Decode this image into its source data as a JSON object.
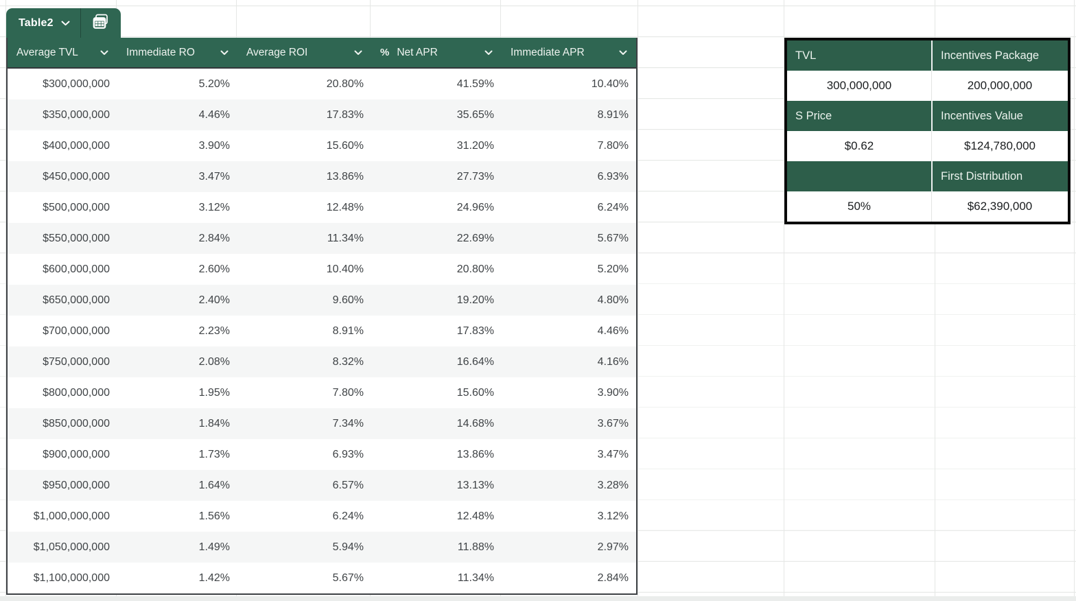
{
  "table_tab": {
    "label": "Table2",
    "chevron_icon": "chevron-down-icon",
    "view_icon": "table-view-icon"
  },
  "main_table": {
    "headers": [
      {
        "label": "Average TVL"
      },
      {
        "label": "Immediate RO"
      },
      {
        "label": "Average ROI"
      },
      {
        "label": "Net APR",
        "type_icon": "%"
      },
      {
        "label": "Immediate APR"
      }
    ],
    "rows": [
      [
        "$300,000,000",
        "5.20%",
        "20.80%",
        "41.59%",
        "10.40%"
      ],
      [
        "$350,000,000",
        "4.46%",
        "17.83%",
        "35.65%",
        "8.91%"
      ],
      [
        "$400,000,000",
        "3.90%",
        "15.60%",
        "31.20%",
        "7.80%"
      ],
      [
        "$450,000,000",
        "3.47%",
        "13.86%",
        "27.73%",
        "6.93%"
      ],
      [
        "$500,000,000",
        "3.12%",
        "12.48%",
        "24.96%",
        "6.24%"
      ],
      [
        "$550,000,000",
        "2.84%",
        "11.34%",
        "22.69%",
        "5.67%"
      ],
      [
        "$600,000,000",
        "2.60%",
        "10.40%",
        "20.80%",
        "5.20%"
      ],
      [
        "$650,000,000",
        "2.40%",
        "9.60%",
        "19.20%",
        "4.80%"
      ],
      [
        "$700,000,000",
        "2.23%",
        "8.91%",
        "17.83%",
        "4.46%"
      ],
      [
        "$750,000,000",
        "2.08%",
        "8.32%",
        "16.64%",
        "4.16%"
      ],
      [
        "$800,000,000",
        "1.95%",
        "7.80%",
        "15.60%",
        "3.90%"
      ],
      [
        "$850,000,000",
        "1.84%",
        "7.34%",
        "14.68%",
        "3.67%"
      ],
      [
        "$900,000,000",
        "1.73%",
        "6.93%",
        "13.86%",
        "3.47%"
      ],
      [
        "$950,000,000",
        "1.64%",
        "6.57%",
        "13.13%",
        "3.28%"
      ],
      [
        "$1,000,000,000",
        "1.56%",
        "6.24%",
        "12.48%",
        "3.12%"
      ],
      [
        "$1,050,000,000",
        "1.49%",
        "5.94%",
        "11.88%",
        "2.97%"
      ],
      [
        "$1,100,000,000",
        "1.42%",
        "5.67%",
        "11.34%",
        "2.84%"
      ]
    ]
  },
  "side_panel": {
    "rows": [
      {
        "kind": "header",
        "cells": [
          "TVL",
          "Incentives Package"
        ]
      },
      {
        "kind": "value",
        "cells": [
          "300,000,000",
          "200,000,000"
        ]
      },
      {
        "kind": "header",
        "cells": [
          "S Price",
          "Incentives Value"
        ]
      },
      {
        "kind": "value",
        "cells": [
          "$0.62",
          "$124,780,000"
        ]
      },
      {
        "kind": "header",
        "cells": [
          "",
          "First Distribution"
        ]
      },
      {
        "kind": "value",
        "cells": [
          "50%",
          "$62,390,000"
        ]
      }
    ]
  },
  "colors": {
    "header_green": "#2f6652",
    "side_green": "#2d5e4a",
    "band_gray": "#f5f6f6",
    "border_dark": "#3e4145",
    "side_border": "#0a0a0a",
    "gridline": "#e5e7e5",
    "cell_text": "#3f4346",
    "side_value_text": "#1a1d1f"
  }
}
